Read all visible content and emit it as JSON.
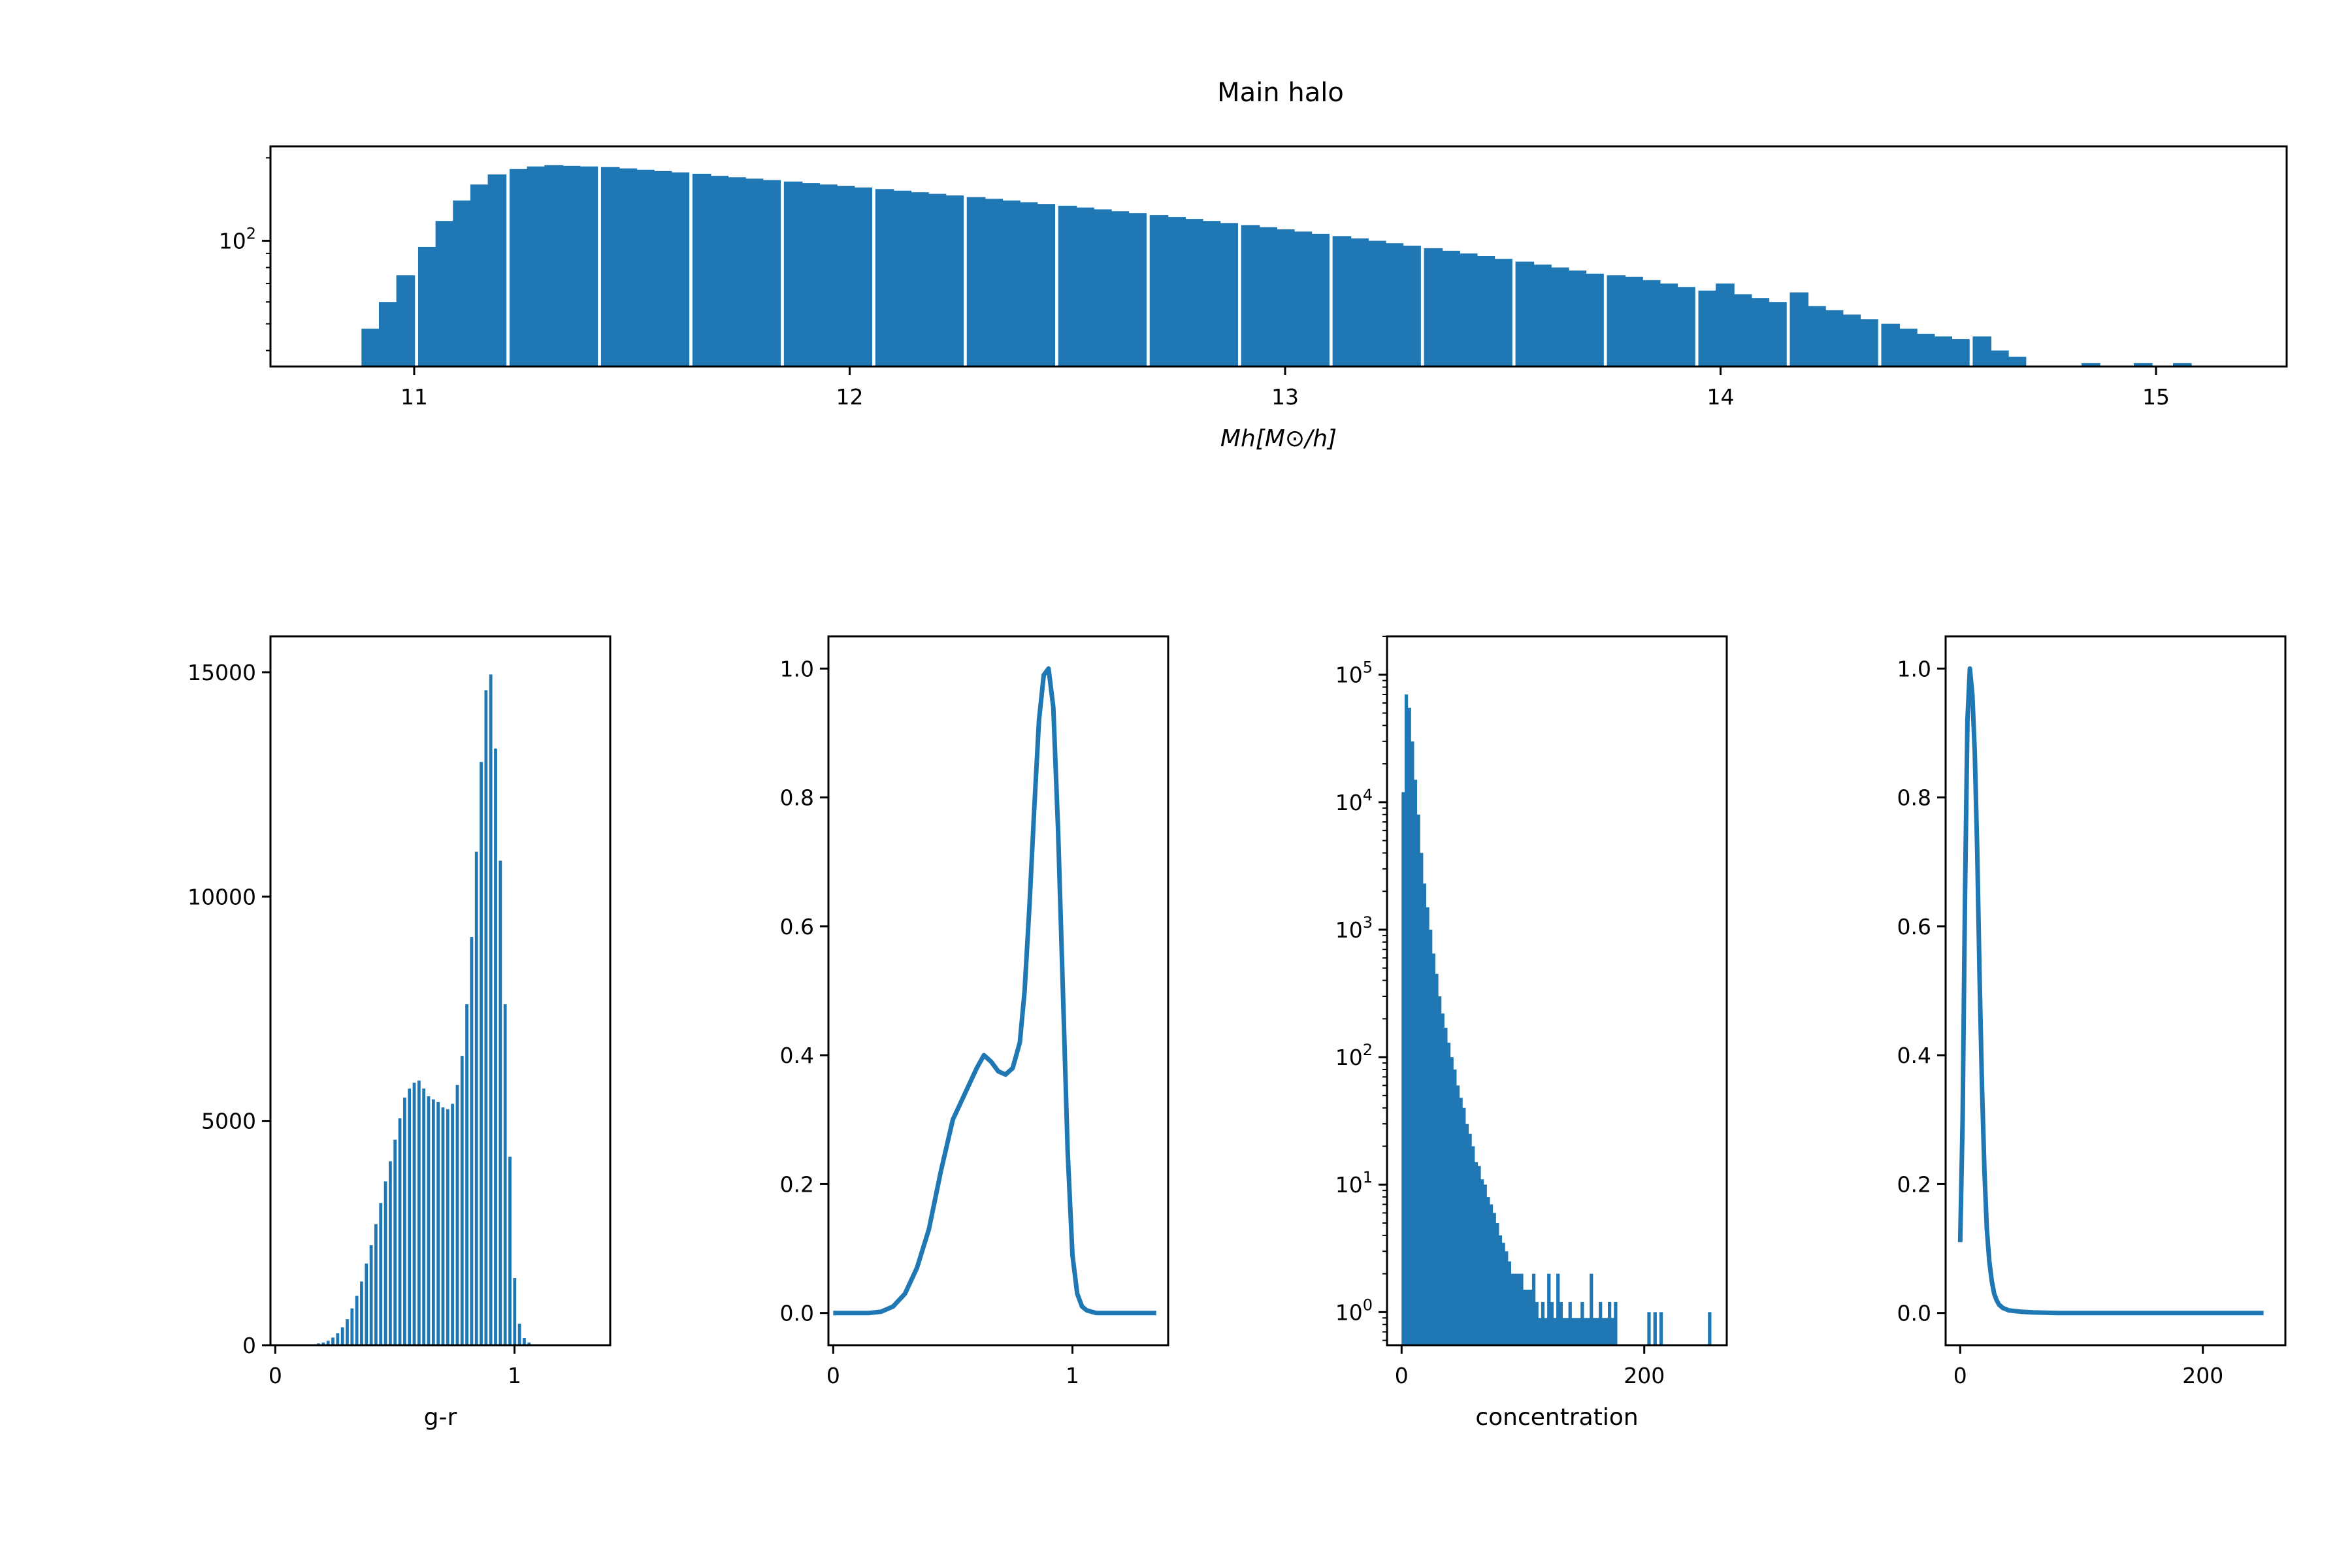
{
  "figure": {
    "title": "Main halo"
  },
  "chart_data": [
    {
      "id": "mh",
      "type": "bar",
      "subtype": "histogram",
      "title": "Main halo",
      "xlabel": "Mh[M⊙/h]",
      "ylabel": "",
      "xlim": [
        10.67,
        15.3
      ],
      "yscale": "log",
      "ylim": [
        35,
        220
      ],
      "yticks": [
        100
      ],
      "ytick_labels": [
        {
          "base": "10",
          "exp": "2"
        }
      ],
      "xticks": [
        11,
        12,
        13,
        14,
        15
      ],
      "xtick_labels": [
        "11",
        "12",
        "13",
        "14",
        "15"
      ],
      "bin_width": 0.042,
      "x": [
        10.9,
        10.94,
        10.98,
        11.03,
        11.07,
        11.11,
        11.15,
        11.19,
        11.24,
        11.28,
        11.32,
        11.36,
        11.4,
        11.45,
        11.49,
        11.53,
        11.57,
        11.61,
        11.66,
        11.7,
        11.74,
        11.78,
        11.82,
        11.87,
        11.91,
        11.95,
        11.99,
        12.03,
        12.08,
        12.12,
        12.16,
        12.2,
        12.24,
        12.29,
        12.33,
        12.37,
        12.41,
        12.45,
        12.5,
        12.54,
        12.58,
        12.62,
        12.66,
        12.71,
        12.75,
        12.79,
        12.83,
        12.87,
        12.92,
        12.96,
        13.0,
        13.04,
        13.08,
        13.13,
        13.17,
        13.21,
        13.25,
        13.29,
        13.34,
        13.38,
        13.42,
        13.46,
        13.5,
        13.55,
        13.59,
        13.63,
        13.67,
        13.71,
        13.76,
        13.8,
        13.84,
        13.88,
        13.92,
        13.97,
        14.01,
        14.05,
        14.09,
        14.13,
        14.18,
        14.22,
        14.26,
        14.3,
        14.34,
        14.39,
        14.43,
        14.47,
        14.51,
        14.55,
        14.6,
        14.64,
        14.68,
        14.72,
        14.76,
        14.81,
        14.85,
        14.89,
        14.93,
        14.97,
        15.02,
        15.06,
        15.1
      ],
      "values": [
        48,
        60,
        75,
        95,
        118,
        140,
        160,
        174,
        182,
        186,
        188,
        187,
        186,
        185,
        183,
        181,
        179,
        177,
        175,
        172,
        170,
        168,
        166,
        164,
        162,
        160,
        158,
        156,
        154,
        152,
        150,
        148,
        146,
        144,
        142,
        140,
        138,
        136,
        134,
        132,
        130,
        128,
        126,
        124,
        122,
        120,
        118,
        116,
        114,
        112,
        110,
        108,
        106,
        104,
        102,
        100,
        98,
        96,
        94,
        92,
        90,
        88,
        86,
        84,
        82,
        80,
        78,
        76,
        75,
        74,
        72,
        70,
        68,
        66,
        70,
        64,
        62,
        60,
        65,
        58,
        56,
        54,
        52,
        50,
        48,
        46,
        45,
        44,
        45,
        40,
        38,
        35,
        0,
        0,
        36,
        0,
        0,
        36,
        0,
        36,
        0
      ]
    },
    {
      "id": "gr_hist",
      "type": "bar",
      "subtype": "histogram",
      "xlabel": "g-r",
      "ylabel": "",
      "xlim": [
        -0.02,
        1.4
      ],
      "ylim": [
        0,
        15800
      ],
      "xticks": [
        0,
        1
      ],
      "xtick_labels": [
        "0",
        "1"
      ],
      "yticks": [
        0,
        5000,
        10000,
        15000
      ],
      "ytick_labels": [
        "0",
        "5000",
        "10000",
        "15000"
      ],
      "bin_width": 0.0114,
      "x": [
        0.0,
        0.02,
        0.04,
        0.06,
        0.08,
        0.1,
        0.12,
        0.14,
        0.16,
        0.18,
        0.2,
        0.22,
        0.24,
        0.26,
        0.28,
        0.3,
        0.32,
        0.34,
        0.36,
        0.38,
        0.4,
        0.42,
        0.44,
        0.46,
        0.48,
        0.5,
        0.52,
        0.54,
        0.56,
        0.58,
        0.6,
        0.62,
        0.64,
        0.66,
        0.68,
        0.7,
        0.72,
        0.74,
        0.76,
        0.78,
        0.8,
        0.82,
        0.84,
        0.86,
        0.88,
        0.9,
        0.92,
        0.94,
        0.96,
        0.98,
        1.0,
        1.02,
        1.04,
        1.06,
        1.08,
        1.1,
        1.12,
        1.14
      ],
      "values": [
        0,
        0,
        0,
        0,
        0,
        0,
        5,
        10,
        20,
        40,
        60,
        100,
        170,
        270,
        400,
        580,
        820,
        1100,
        1420,
        1820,
        2230,
        2700,
        3170,
        3650,
        4100,
        4580,
        5060,
        5520,
        5720,
        5850,
        5900,
        5720,
        5550,
        5480,
        5420,
        5300,
        5260,
        5380,
        5800,
        6450,
        7600,
        9100,
        11000,
        13000,
        14600,
        14950,
        13300,
        10800,
        7600,
        4200,
        1500,
        480,
        160,
        60,
        20,
        5,
        0,
        0
      ]
    },
    {
      "id": "gr_kde",
      "type": "line",
      "xlabel": "",
      "ylabel": "",
      "xlim": [
        -0.02,
        1.4
      ],
      "ylim": [
        -0.05,
        1.05
      ],
      "xticks": [
        0,
        1
      ],
      "xtick_labels": [
        "0",
        "1"
      ],
      "yticks": [
        0.0,
        0.2,
        0.4,
        0.6,
        0.8,
        1.0
      ],
      "ytick_labels": [
        "0.0",
        "0.2",
        "0.4",
        "0.6",
        "0.8",
        "1.0"
      ],
      "x": [
        0.0,
        0.05,
        0.1,
        0.15,
        0.2,
        0.25,
        0.3,
        0.35,
        0.4,
        0.45,
        0.5,
        0.55,
        0.6,
        0.63,
        0.66,
        0.69,
        0.72,
        0.75,
        0.78,
        0.8,
        0.82,
        0.84,
        0.86,
        0.88,
        0.9,
        0.92,
        0.94,
        0.96,
        0.98,
        1.0,
        1.02,
        1.04,
        1.06,
        1.1,
        1.2,
        1.3,
        1.35
      ],
      "values": [
        0.0,
        0.0,
        0.0,
        0.0,
        0.002,
        0.01,
        0.03,
        0.07,
        0.13,
        0.22,
        0.3,
        0.34,
        0.38,
        0.4,
        0.39,
        0.375,
        0.37,
        0.38,
        0.42,
        0.5,
        0.63,
        0.78,
        0.92,
        0.99,
        1.0,
        0.94,
        0.75,
        0.5,
        0.25,
        0.09,
        0.03,
        0.01,
        0.004,
        0.0,
        0.0,
        0.0,
        0.0
      ]
    },
    {
      "id": "conc_hist",
      "type": "bar",
      "subtype": "histogram",
      "xlabel": "concentration",
      "ylabel": "",
      "xlim": [
        -12,
        268
      ],
      "yscale": "log",
      "ylim": [
        0.55,
        200000
      ],
      "xticks": [
        0,
        200
      ],
      "xtick_labels": [
        "0",
        "200"
      ],
      "yticks": [
        1,
        10,
        100,
        1000,
        10000,
        100000
      ],
      "ytick_labels": [
        {
          "base": "10",
          "exp": "0"
        },
        {
          "base": "10",
          "exp": "1"
        },
        {
          "base": "10",
          "exp": "2"
        },
        {
          "base": "10",
          "exp": "3"
        },
        {
          "base": "10",
          "exp": "4"
        },
        {
          "base": "10",
          "exp": "5"
        }
      ],
      "bin_width": 2.5,
      "x": [
        1.25,
        3.75,
        6.25,
        8.75,
        11.25,
        13.75,
        16.25,
        18.75,
        21.25,
        23.75,
        26.25,
        28.75,
        31.25,
        33.75,
        36.25,
        38.75,
        41.25,
        43.75,
        46.25,
        48.75,
        51.25,
        53.75,
        56.25,
        58.75,
        61.25,
        63.75,
        66.25,
        68.75,
        71.25,
        73.75,
        76.25,
        78.75,
        81.25,
        83.75,
        86.25,
        88.75,
        91.25,
        93.75,
        96.25,
        98.75,
        101.25,
        103.75,
        106.25,
        108.75,
        111.25,
        113.75,
        116.25,
        118.75,
        121.25,
        123.75,
        126.25,
        128.75,
        131.25,
        133.75,
        136.25,
        138.75,
        141.25,
        143.75,
        146.25,
        148.75,
        151.25,
        153.75,
        156.25,
        158.75,
        161.25,
        163.75,
        166.25,
        168.75,
        171.25,
        173.75,
        176.25,
        203.75,
        208.75,
        213.75,
        253.75
      ],
      "values": [
        12000,
        70000,
        55000,
        30000,
        15000,
        8000,
        4000,
        2300,
        1500,
        1000,
        650,
        450,
        300,
        220,
        170,
        130,
        100,
        80,
        60,
        48,
        40,
        30,
        25,
        20,
        15,
        14,
        11,
        10,
        8,
        7,
        6,
        5,
        4,
        3.5,
        3,
        2.5,
        2,
        2,
        2,
        2,
        1.5,
        1.5,
        1.5,
        2,
        1.2,
        0.9,
        1.2,
        0.9,
        2,
        1.2,
        0.9,
        2,
        1.2,
        0.9,
        0.9,
        1.2,
        0.9,
        0.9,
        0.9,
        1.2,
        0.9,
        0.9,
        2,
        0.9,
        0.9,
        1.2,
        0.9,
        0.9,
        1.2,
        0.9,
        1.2,
        1,
        1,
        1,
        1
      ]
    },
    {
      "id": "conc_kde",
      "type": "line",
      "xlabel": "",
      "ylabel": "",
      "xlim": [
        -12,
        268
      ],
      "ylim": [
        -0.05,
        1.05
      ],
      "xticks": [
        0,
        200
      ],
      "xtick_labels": [
        "0",
        "200"
      ],
      "yticks": [
        0.0,
        0.2,
        0.4,
        0.6,
        0.8,
        1.0
      ],
      "ytick_labels": [
        "0.0",
        "0.2",
        "0.4",
        "0.6",
        "0.8",
        "1.0"
      ],
      "x": [
        0,
        2,
        4,
        6,
        8,
        10,
        12,
        14,
        16,
        18,
        20,
        22,
        24,
        26,
        28,
        30,
        32,
        35,
        40,
        50,
        60,
        80,
        100,
        150,
        200,
        250
      ],
      "values": [
        0.11,
        0.3,
        0.65,
        0.92,
        1.0,
        0.96,
        0.87,
        0.72,
        0.52,
        0.35,
        0.22,
        0.13,
        0.08,
        0.05,
        0.03,
        0.02,
        0.013,
        0.008,
        0.004,
        0.002,
        0.001,
        0.0,
        0.0,
        0.0,
        0.0,
        0.0
      ]
    }
  ]
}
